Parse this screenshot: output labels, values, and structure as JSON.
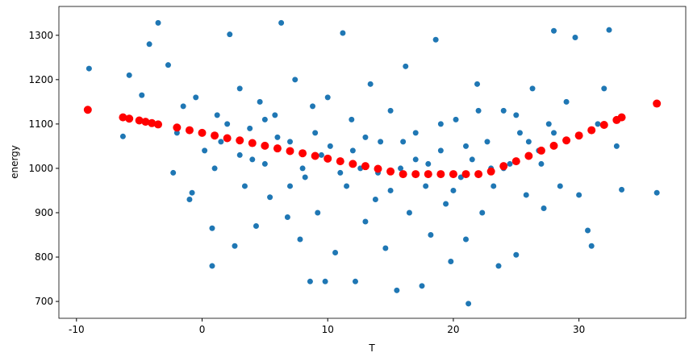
{
  "chart_data": {
    "type": "scatter",
    "xlabel": "T",
    "ylabel": "energy",
    "xlim": [
      -11.4,
      38.5
    ],
    "ylim": [
      662,
      1365
    ],
    "xticks": [
      -10,
      0,
      10,
      20,
      30
    ],
    "yticks": [
      700,
      800,
      900,
      1000,
      1100,
      1200,
      1300
    ],
    "series": [
      {
        "color": "#1f77b4",
        "radius": 3.5,
        "x": [
          -9,
          -6.3,
          -5.8,
          -4.2,
          -3.5,
          -2.7,
          -4.8,
          -4,
          -2.3,
          -1.5,
          -1,
          -0.5,
          -0.8,
          0.2,
          0.8,
          0.8,
          1.2,
          1.5,
          2.2,
          2.6,
          3,
          3.4,
          3.8,
          4.3,
          4.6,
          5,
          5.4,
          5.8,
          6.3,
          6.8,
          7,
          7.4,
          7.8,
          8.2,
          8.6,
          8.8,
          9.2,
          9.8,
          10.2,
          10.6,
          11.2,
          11.5,
          11.9,
          12.2,
          12.6,
          13,
          13.4,
          13.8,
          14.2,
          14.6,
          15,
          15.5,
          15.8,
          16.2,
          16.5,
          17,
          17.5,
          17.8,
          18.2,
          18.6,
          19,
          19.4,
          19.8,
          20.2,
          20.6,
          21,
          21.2,
          21.5,
          21.9,
          22.3,
          22.7,
          23.2,
          23.6,
          24,
          24.5,
          25,
          25.3,
          25.8,
          26.3,
          26.8,
          27.2,
          27.6,
          28,
          28.5,
          29,
          29.7,
          30,
          30.7,
          31,
          31.5,
          32,
          32.4,
          33,
          33.4,
          36.2,
          2,
          4,
          6,
          8,
          10,
          12,
          14,
          16,
          18,
          20,
          22,
          24,
          26,
          28,
          3,
          5,
          7,
          9,
          11,
          13,
          15,
          17,
          19,
          21,
          23,
          25,
          27,
          -2,
          1,
          9.5
        ],
        "values": [
          1225,
          1072,
          1210,
          1280,
          1328,
          1233,
          1165,
          1100,
          990,
          1140,
          930,
          1160,
          945,
          1040,
          780,
          865,
          1120,
          1060,
          1302,
          825,
          1180,
          960,
          1090,
          870,
          1150,
          1010,
          935,
          1120,
          1328,
          890,
          1060,
          1200,
          840,
          980,
          745,
          1140,
          900,
          745,
          1050,
          810,
          1305,
          960,
          1110,
          745,
          1000,
          880,
          1190,
          930,
          1060,
          820,
          1130,
          725,
          1000,
          1230,
          900,
          1080,
          735,
          960,
          850,
          1290,
          1040,
          920,
          790,
          1110,
          980,
          840,
          695,
          1020,
          1190,
          900,
          1060,
          960,
          780,
          1130,
          1010,
          805,
          1080,
          940,
          1180,
          1040,
          910,
          1100,
          1310,
          960,
          1150,
          1295,
          940,
          860,
          825,
          1100,
          1180,
          1312,
          1050,
          952,
          945,
          1100,
          1020,
          1070,
          1000,
          1160,
          1040,
          990,
          1060,
          1010,
          950,
          1130,
          1000,
          1060,
          1080,
          1030,
          1110,
          960,
          1080,
          990,
          1070,
          950,
          1020,
          1100,
          1050,
          1000,
          1120,
          1010,
          1080,
          1000,
          1030
        ]
      },
      {
        "color": "red",
        "radius": 5,
        "x": [
          -9.1,
          -6.3,
          -5.8,
          -5,
          -4.5,
          -4,
          -3.5,
          -2,
          -1,
          0,
          1,
          2,
          3,
          4,
          5,
          6,
          7,
          8,
          9,
          10,
          11,
          12,
          13,
          14,
          15,
          16,
          17,
          18,
          19,
          20,
          21,
          22,
          23,
          24,
          25,
          26,
          27,
          28,
          29,
          30,
          31,
          32,
          33,
          33.4,
          36.2
        ],
        "values": [
          1132,
          1115,
          1112,
          1108,
          1105,
          1102,
          1099,
          1092,
          1086,
          1080,
          1074,
          1068,
          1063,
          1057,
          1051,
          1045,
          1039,
          1034,
          1028,
          1022,
          1016,
          1010,
          1005,
          999,
          993,
          987,
          987,
          987,
          987,
          987,
          987,
          987,
          993,
          1005,
          1016,
          1028,
          1040,
          1051,
          1063,
          1074,
          1086,
          1098,
          1109,
          1115,
          1146
        ]
      }
    ]
  }
}
